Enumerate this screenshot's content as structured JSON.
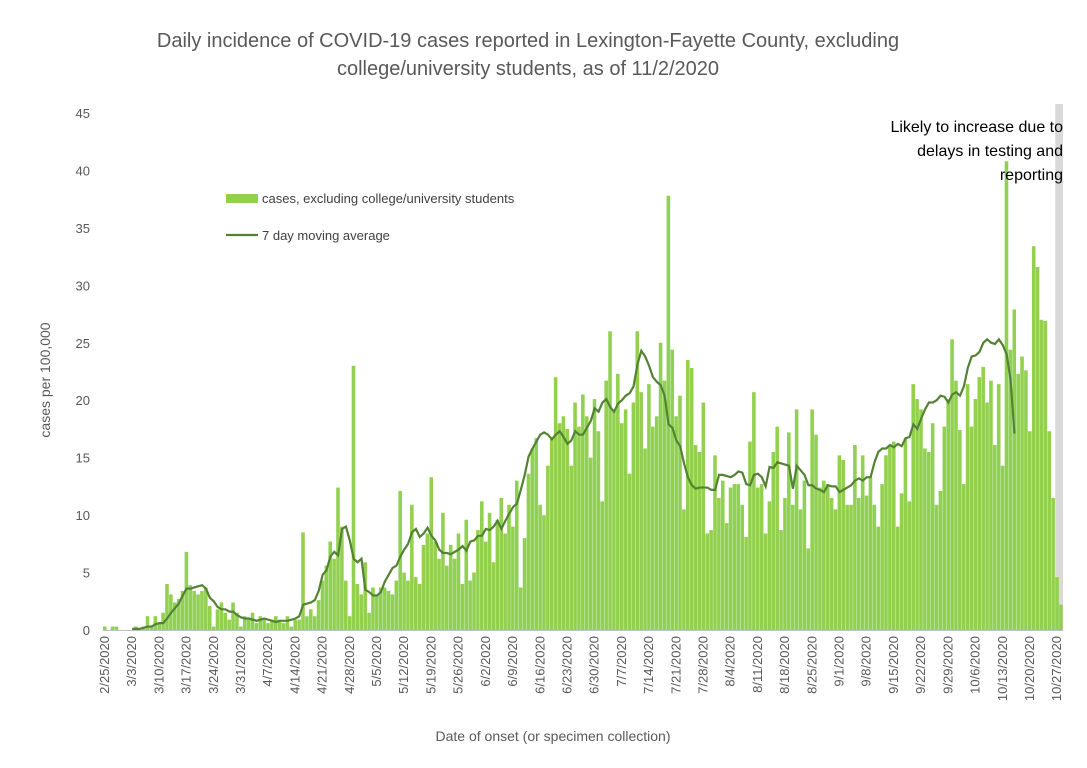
{
  "chart_data": {
    "type": "bar",
    "title_lines": [
      "Daily incidence of COVID-19 cases reported in Lexington-Fayette County, excluding",
      "college/university students, as of 11/2/2020"
    ],
    "xlabel": "Date of onset (or specimen collection)",
    "ylabel": "cases per 100,000",
    "ylim": [
      0,
      45
    ],
    "ytick_labels": [
      "0",
      "5",
      "10",
      "15",
      "20",
      "25",
      "30",
      "35",
      "40",
      "45"
    ],
    "grid": false,
    "start_date": "2/25/2020",
    "end_date": "11/1/2020",
    "xtick_labels": [
      "2/25/2020",
      "3/3/2020",
      "3/10/2020",
      "3/17/2020",
      "3/24/2020",
      "3/31/2020",
      "4/7/2020",
      "4/14/2020",
      "4/21/2020",
      "4/28/2020",
      "5/5/2020",
      "5/12/2020",
      "5/19/2020",
      "5/26/2020",
      "6/2/2020",
      "6/9/2020",
      "6/16/2020",
      "6/23/2020",
      "6/30/2020",
      "7/7/2020",
      "7/14/2020",
      "7/21/2020",
      "7/28/2020",
      "8/4/2020",
      "8/11/2020",
      "8/18/2020",
      "8/25/2020",
      "9/1/2020",
      "9/8/2020",
      "9/15/2020",
      "9/22/2020",
      "9/29/2020",
      "10/6/2020",
      "10/13/2020",
      "10/20/2020",
      "10/27/2020"
    ],
    "legend": {
      "position": "upper-left",
      "entries": [
        "cases, excluding college/university students",
        "7 day moving average"
      ]
    },
    "annotation": {
      "lines": [
        "Likely to increase due to",
        "delays in testing and",
        "reporting"
      ],
      "shaded_from": "10/27/2020",
      "shaded_to": "11/1/2020"
    },
    "colors": {
      "bars": "#92d050",
      "average": "#548235",
      "shade": "#d9d9d9",
      "text": "#595959"
    },
    "series": [
      {
        "name": "cases, excluding college/university students",
        "type": "bar",
        "values": [
          0.3,
          0,
          0.3,
          0.3,
          0,
          0,
          0,
          0,
          0.3,
          0,
          0.3,
          1.2,
          0.3,
          1.2,
          0.6,
          1.5,
          4.0,
          3.1,
          2.4,
          2.7,
          3.4,
          6.8,
          3.9,
          3.4,
          3.1,
          3.4,
          3.7,
          2.1,
          0.3,
          1.8,
          2.4,
          1.5,
          0.9,
          2.4,
          1.5,
          0.3,
          1.2,
          0.9,
          1.5,
          0.6,
          1.2,
          0.9,
          0.6,
          0.9,
          1.2,
          0.9,
          0.6,
          1.2,
          0.3,
          0.9,
          0.9,
          8.5,
          1.2,
          1.8,
          1.2,
          2.6,
          4.3,
          5.6,
          7.7,
          6.2,
          12.4,
          9.0,
          4.3,
          1.2,
          23.0,
          4.0,
          3.1,
          5.9,
          1.5,
          3.7,
          3.1,
          3.7,
          3.7,
          3.4,
          3.1,
          4.3,
          12.1,
          5.0,
          4.3,
          10.9,
          4.6,
          4.0,
          7.4,
          8.4,
          13.3,
          7.7,
          6.2,
          10.2,
          5.6,
          7.4,
          6.2,
          8.4,
          4.0,
          9.6,
          4.3,
          5.0,
          8.7,
          11.2,
          7.7,
          10.2,
          5.9,
          9.6,
          11.5,
          8.4,
          10.9,
          9.0,
          13.0,
          3.7,
          8.0,
          13.6,
          15.8,
          16.7,
          10.9,
          10.0,
          14.3,
          16.8,
          22.0,
          18.0,
          18.6,
          17.5,
          14.3,
          19.8,
          17.7,
          20.5,
          18.6,
          15.0,
          20.1,
          17.3,
          11.2,
          21.7,
          26.0,
          19.2,
          22.3,
          18.0,
          19.2,
          13.6,
          19.8,
          26.0,
          20.7,
          15.8,
          21.4,
          17.7,
          18.6,
          25.0,
          21.7,
          37.8,
          24.4,
          18.6,
          20.4,
          10.5,
          23.5,
          22.8,
          16.1,
          15.5,
          19.8,
          8.4,
          8.7,
          15.2,
          11.5,
          13.0,
          9.3,
          12.4,
          12.7,
          12.7,
          10.9,
          8.1,
          16.4,
          20.7,
          12.4,
          12.7,
          8.4,
          11.2,
          15.5,
          17.7,
          8.7,
          11.5,
          17.2,
          10.9,
          19.2,
          10.5,
          13.0,
          7.1,
          19.2,
          17.0,
          12.4,
          13.0,
          12.7,
          11.5,
          10.5,
          15.2,
          14.8,
          10.9,
          10.9,
          16.1,
          11.5,
          15.2,
          11.7,
          13.3,
          10.9,
          9.0,
          12.7,
          15.2,
          16.1,
          16.4,
          9.0,
          11.9,
          16.7,
          11.2,
          21.4,
          20.1,
          19.2,
          15.8,
          15.5,
          18.0,
          10.9,
          12.1,
          17.7,
          20.1,
          25.3,
          21.7,
          17.4,
          12.7,
          21.4,
          17.7,
          20.1,
          22.0,
          22.9,
          19.8,
          21.7,
          16.1,
          21.4,
          14.3,
          40.8,
          24.4,
          27.9,
          22.3,
          23.8,
          22.6,
          17.3,
          33.4,
          31.6,
          27.0,
          26.9,
          17.3,
          11.5,
          4.6,
          2.2
        ]
      },
      {
        "name": "7 day moving average",
        "type": "line",
        "start_index": 7,
        "values": [
          0.1,
          0.1,
          0.1,
          0.2,
          0.3,
          0.3,
          0.5,
          0.6,
          0.6,
          1.0,
          1.5,
          1.9,
          2.3,
          3.0,
          3.6,
          3.6,
          3.7,
          3.8,
          3.9,
          3.6,
          2.8,
          2.5,
          2.0,
          1.8,
          1.8,
          1.6,
          1.6,
          1.3,
          1.1,
          1.0,
          1.0,
          0.9,
          0.8,
          0.9,
          1.0,
          0.9,
          0.8,
          0.7,
          0.8,
          0.8,
          0.8,
          0.9,
          1.0,
          1.2,
          2.2,
          2.3,
          2.4,
          2.6,
          3.4,
          4.8,
          5.2,
          6.4,
          6.8,
          6.5,
          8.8,
          9.0,
          7.8,
          6.2,
          5.9,
          6.2,
          3.5,
          3.3,
          3.0,
          3.0,
          3.3,
          4.2,
          4.8,
          5.4,
          5.6,
          6.4,
          7.0,
          7.5,
          8.5,
          8.8,
          8.1,
          8.4,
          8.9,
          8.2,
          7.8,
          7.0,
          6.7,
          6.7,
          6.6,
          6.8,
          7.0,
          7.3,
          6.9,
          7.7,
          7.8,
          8.2,
          8.2,
          8.8,
          8.7,
          9.0,
          9.5,
          8.8,
          9.5,
          10.1,
          10.7,
          11.0,
          12.2,
          13.5,
          15.1,
          15.8,
          16.4,
          17.0,
          17.2,
          17.0,
          16.6,
          17.0,
          17.3,
          16.8,
          16.2,
          16.5,
          17.3,
          17.0,
          17.0,
          17.6,
          18.2,
          19.3,
          19.0,
          19.8,
          20.1,
          19.4,
          19.0,
          19.7,
          20.0,
          20.4,
          20.6,
          21.2,
          23.1,
          24.3,
          23.8,
          23.0,
          22.0,
          21.6,
          21.3,
          20.4,
          17.9,
          17.6,
          16.5,
          16.0,
          14.5,
          13.3,
          12.6,
          12.3,
          12.4,
          12.4,
          12.4,
          12.2,
          12.2,
          13.5,
          13.5,
          13.4,
          13.3,
          13.5,
          13.8,
          13.7,
          12.7,
          12.6,
          13.5,
          13.6,
          13.3,
          12.5,
          14.2,
          14.1,
          14.6,
          14.5,
          14.4,
          14.3,
          12.3,
          14.3,
          13.9,
          13.5,
          12.6,
          12.6,
          12.3,
          12.2,
          12.0,
          12.6,
          12.5,
          12.5,
          12.0,
          12.2,
          12.4,
          12.6,
          13.0,
          13.2,
          13.0,
          13.3,
          13.3,
          14.6,
          15.5,
          15.8,
          15.8,
          16.1,
          15.9,
          16.2,
          16.0,
          16.7,
          16.8,
          17.9,
          17.5,
          18.4,
          19.2,
          19.8,
          19.8,
          20.0,
          20.4,
          20.3,
          19.8,
          20.5,
          20.7,
          20.4,
          21.2,
          22.8,
          23.8,
          23.9,
          24.2,
          25.0,
          25.3,
          25.0,
          24.9,
          25.3,
          24.8,
          24.0,
          21.8,
          17.1
        ]
      }
    ]
  }
}
